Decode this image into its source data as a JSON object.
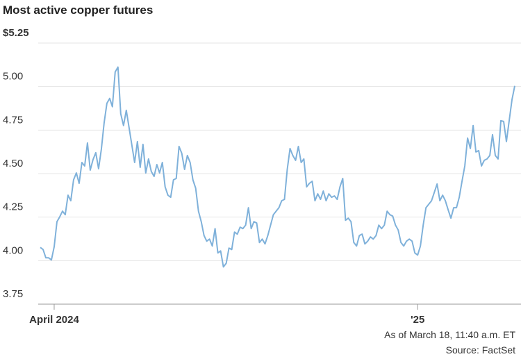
{
  "chart_data": {
    "type": "line",
    "title": "Most active copper futures",
    "footnote": "As of March 18, 11:40 a.m. ET",
    "source": "Source: FactSet",
    "categories": [
      null,
      null,
      null,
      null,
      null,
      "April 2024",
      null,
      null,
      null,
      null,
      null,
      null,
      null,
      null,
      null,
      null,
      null,
      null,
      null,
      null,
      null,
      null,
      null,
      null,
      null,
      null,
      null,
      null,
      null,
      null,
      null,
      null,
      null,
      null,
      null,
      null,
      null,
      null,
      null,
      null,
      null,
      null,
      null,
      null,
      null,
      null,
      null,
      null,
      null,
      null,
      null,
      null,
      null,
      null,
      null,
      null,
      null,
      null,
      null,
      null,
      null,
      null,
      null,
      null,
      null,
      null,
      null,
      null,
      null,
      null,
      null,
      null,
      null,
      null,
      null,
      null,
      null,
      null,
      null,
      null,
      null,
      null,
      null,
      null,
      null,
      null,
      null,
      null,
      null,
      null,
      null,
      null,
      null,
      null,
      null,
      null,
      null,
      null,
      null,
      null,
      null,
      null,
      null,
      null,
      null,
      null,
      null,
      null,
      null,
      null,
      null,
      null,
      null,
      null,
      null,
      null,
      null,
      null,
      null,
      null,
      null,
      null,
      null,
      null,
      null,
      null,
      null,
      null,
      null,
      null,
      null,
      null,
      null,
      null,
      null,
      null,
      "'25",
      null,
      null,
      null,
      null,
      null,
      null,
      null,
      null,
      null,
      null,
      null,
      null,
      null,
      null,
      null,
      null,
      null,
      null,
      null,
      null,
      null,
      null,
      null,
      null,
      null,
      null,
      null,
      null,
      null,
      null,
      null,
      null,
      null,
      null,
      null
    ],
    "series": [
      {
        "color": "#7fb1da",
        "values": [
          4.076,
          4.064,
          4.016,
          4.016,
          4.004,
          4.08,
          4.224,
          4.252,
          4.284,
          4.264,
          4.376,
          4.344,
          4.464,
          4.504,
          4.444,
          4.564,
          4.544,
          4.676,
          4.52,
          4.58,
          4.62,
          4.528,
          4.64,
          4.792,
          4.904,
          4.932,
          4.884,
          5.084,
          5.112,
          4.844,
          4.776,
          4.864,
          4.764,
          4.664,
          4.564,
          4.684,
          4.536,
          4.668,
          4.504,
          4.584,
          4.512,
          4.484,
          4.552,
          4.504,
          4.564,
          4.424,
          4.376,
          4.364,
          4.464,
          4.472,
          4.656,
          4.616,
          4.524,
          4.604,
          4.564,
          4.464,
          4.416,
          4.284,
          4.224,
          4.144,
          4.112,
          4.124,
          4.084,
          4.184,
          4.044,
          4.056,
          3.964,
          3.984,
          4.072,
          4.064,
          4.164,
          4.152,
          4.192,
          4.184,
          4.204,
          4.304,
          4.184,
          4.224,
          4.216,
          4.104,
          4.124,
          4.096,
          4.144,
          4.204,
          4.264,
          4.284,
          4.304,
          4.344,
          4.352,
          4.524,
          4.644,
          4.604,
          4.576,
          4.656,
          4.564,
          4.584,
          4.424,
          4.444,
          4.456,
          4.344,
          4.384,
          4.352,
          4.4,
          4.344,
          4.384,
          4.364,
          4.372,
          4.352,
          4.424,
          4.472,
          4.232,
          4.244,
          4.224,
          4.104,
          4.084,
          4.144,
          4.152,
          4.096,
          4.112,
          4.136,
          4.124,
          4.144,
          4.204,
          4.184,
          4.204,
          4.284,
          4.264,
          4.256,
          4.204,
          4.176,
          4.104,
          4.084,
          4.112,
          4.124,
          4.112,
          4.044,
          4.032,
          4.084,
          4.204,
          4.304,
          4.324,
          4.344,
          4.392,
          4.44,
          4.344,
          4.376,
          4.344,
          4.292,
          4.244,
          4.304,
          4.304,
          4.364,
          4.456,
          4.544,
          4.704,
          4.644,
          4.776,
          4.624,
          4.632,
          4.544,
          4.576,
          4.584,
          4.604,
          4.724,
          4.604,
          4.584,
          4.804,
          4.8,
          4.684,
          4.804,
          4.924,
          5.004
        ]
      }
    ],
    "ylim": [
      3.75,
      5.25
    ],
    "yticks": [
      3.75,
      {
        "value": 4,
        "label": "4.00"
      },
      4.25,
      {
        "value": 4.5,
        "label": "4.50"
      },
      4.75,
      {
        "value": 5,
        "label": "5.00"
      },
      {
        "value": 5.25,
        "label": "$5.25"
      }
    ],
    "grid": true
  }
}
